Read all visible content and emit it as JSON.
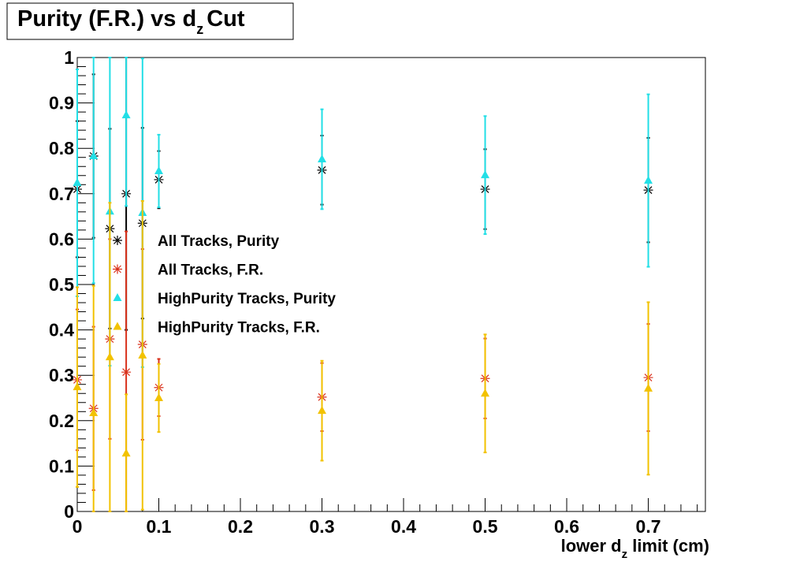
{
  "chart_data": {
    "type": "errorbar",
    "title": [
      "Purity (F.R.) vs d",
      "z",
      "Cut"
    ],
    "x_label": [
      "lower d",
      "z",
      " limit (cm)"
    ],
    "x": [
      0,
      0.02,
      0.04,
      0.06,
      0.08,
      0.1,
      0.3,
      0.5,
      0.7
    ],
    "xlim": [
      0,
      0.77
    ],
    "ylim": [
      0,
      1
    ],
    "xticks": [
      0,
      0.1,
      0.2,
      0.3,
      0.4,
      0.5,
      0.6,
      0.7
    ],
    "yticks": [
      0,
      0.1,
      0.2,
      0.3,
      0.4,
      0.5,
      0.6,
      0.7,
      0.8,
      0.9,
      1
    ],
    "series": [
      {
        "name": "All Tracks, Purity",
        "color": "#000000",
        "marker": "star",
        "values": [
          0.71,
          0.783,
          0.623,
          0.7,
          0.635,
          0.731,
          0.752,
          0.71,
          0.708
        ],
        "errors": [
          0.15,
          0.18,
          0.22,
          0.3,
          0.21,
          0.063,
          0.076,
          0.088,
          0.115
        ]
      },
      {
        "name": "All Tracks, F.R.",
        "color": "#d9301a",
        "marker": "star",
        "values": [
          0.29,
          0.227,
          0.38,
          0.307,
          0.368,
          0.273,
          0.252,
          0.293,
          0.295
        ],
        "errors": [
          0.155,
          0.18,
          0.22,
          0.31,
          0.21,
          0.063,
          0.075,
          0.088,
          0.118
        ]
      },
      {
        "name": "HighPurity Tracks, Purity",
        "color": "#22dfe6",
        "marker": "triangle",
        "values": [
          0.724,
          0.783,
          0.661,
          0.873,
          0.658,
          0.75,
          0.776,
          0.741,
          0.729
        ],
        "errors": [
          0.25,
          0.28,
          0.34,
          0.2,
          0.34,
          0.08,
          0.11,
          0.13,
          0.19
        ]
      },
      {
        "name": "HighPurity Tracks, F.R.",
        "color": "#f2c200",
        "marker": "triangle",
        "values": [
          0.274,
          0.217,
          0.34,
          0.128,
          0.344,
          0.25,
          0.222,
          0.26,
          0.271
        ],
        "errors": [
          0.22,
          0.28,
          0.34,
          0.13,
          0.34,
          0.075,
          0.11,
          0.13,
          0.19
        ]
      }
    ]
  }
}
